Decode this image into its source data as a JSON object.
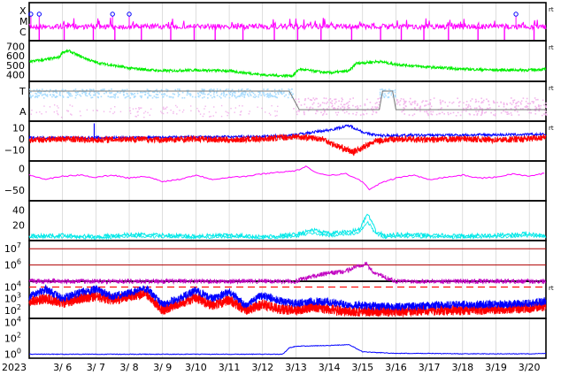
{
  "chart_data": {
    "type": "line",
    "year_label": "2023",
    "x_ticks": [
      "3/ 6",
      "3/ 7",
      "3/ 8",
      "3/ 9",
      "3/10",
      "3/11",
      "3/12",
      "3/13",
      "3/14",
      "3/15",
      "3/16",
      "3/17",
      "3/18",
      "3/19",
      "3/20"
    ],
    "x_range": [
      "3/5",
      "3/20 + 0.5d"
    ],
    "grid": true,
    "colors": {
      "magenta": "#ff00ff",
      "green": "#00ee00",
      "lightblue": "#a8dcff",
      "pink": "#f2b6ec",
      "gray": "#777777",
      "blue": "#0000ff",
      "red": "#ff0000",
      "purple": "#c000c0",
      "cyan": "#00e8e8",
      "darkred": "#b00000"
    },
    "panels": [
      {
        "id": "flare",
        "y_ticks": [
          "X",
          "M",
          "C"
        ],
        "right_mark": "rt",
        "series": [
          {
            "color": "magenta",
            "description_values": "class index ~C-M, spikes to X at 3/5, 3/8, 3/19"
          }
        ],
        "markers": [
          {
            "x": "3/5.05",
            "color": "blue"
          },
          {
            "x": "3/5.3",
            "color": "blue"
          },
          {
            "x": "3/7.5",
            "color": "blue"
          },
          {
            "x": "3/8.0",
            "color": "blue"
          },
          {
            "x": "3/19.6",
            "color": "blue"
          }
        ]
      },
      {
        "id": "speed",
        "y_ticks": [
          "700",
          "600",
          "500",
          "400"
        ],
        "ylim": [
          330,
          760
        ],
        "right_mark": "rt",
        "series": [
          {
            "color": "green",
            "points": [
              [
                5.0,
                540
              ],
              [
                5.5,
                560
              ],
              [
                5.9,
                585
              ],
              [
                6.0,
                640
              ],
              [
                6.2,
                650
              ],
              [
                6.5,
                600
              ],
              [
                7.0,
                530
              ],
              [
                7.5,
                500
              ],
              [
                8.0,
                470
              ],
              [
                9.0,
                440
              ],
              [
                10.0,
                450
              ],
              [
                11.0,
                440
              ],
              [
                11.5,
                420
              ],
              [
                12.0,
                400
              ],
              [
                12.5,
                390
              ],
              [
                12.9,
                390
              ],
              [
                13.1,
                460
              ],
              [
                13.5,
                440
              ],
              [
                14.0,
                420
              ],
              [
                14.6,
                440
              ],
              [
                14.8,
                520
              ],
              [
                15.5,
                540
              ],
              [
                16.0,
                510
              ],
              [
                17.0,
                480
              ],
              [
                18.0,
                460
              ],
              [
                19.0,
                450
              ],
              [
                20.0,
                450
              ],
              [
                20.5,
                460
              ]
            ]
          }
        ]
      },
      {
        "id": "sector",
        "y_ticks": [
          "T",
          "A"
        ],
        "right_mark": "rt",
        "series": [
          {
            "color": "lightblue",
            "label_hint": "T"
          },
          {
            "color": "pink",
            "label_hint": "A"
          },
          {
            "color": "gray",
            "points": [
              [
                5.0,
                1
              ],
              [
                12.8,
                1
              ],
              [
                13.1,
                0
              ],
              [
                15.5,
                0
              ],
              [
                15.6,
                1
              ],
              [
                15.9,
                1
              ],
              [
                16.0,
                0
              ],
              [
                20.5,
                0
              ]
            ]
          }
        ]
      },
      {
        "id": "bz",
        "y_ticks": [
          "10",
          "0",
          "−10"
        ],
        "ylim": [
          -20,
          16
        ],
        "right_mark": "rt",
        "series": [
          {
            "color": "blue",
            "points": [
              [
                5.0,
                1
              ],
              [
                7.8,
                1
              ],
              [
                12.0,
                2
              ],
              [
                12.8,
                3
              ],
              [
                13.5,
                6
              ],
              [
                14.0,
                8
              ],
              [
                14.6,
                12
              ],
              [
                15.1,
                5
              ],
              [
                15.5,
                3
              ],
              [
                20.5,
                4
              ]
            ]
          },
          {
            "color": "red",
            "points": [
              [
                5.0,
                -1
              ],
              [
                6.0,
                0
              ],
              [
                7.0,
                -1
              ],
              [
                8.0,
                0
              ],
              [
                9.0,
                -1
              ],
              [
                10.0,
                0
              ],
              [
                11.0,
                -1
              ],
              [
                12.0,
                0
              ],
              [
                13.0,
                2
              ],
              [
                13.8,
                0
              ],
              [
                14.2,
                -6
              ],
              [
                14.7,
                -12
              ],
              [
                15.0,
                -8
              ],
              [
                15.4,
                -2
              ],
              [
                16.0,
                0
              ],
              [
                17.0,
                -1
              ],
              [
                18.0,
                0
              ],
              [
                19.0,
                -1
              ],
              [
                20.0,
                0
              ],
              [
                20.5,
                2
              ]
            ]
          }
        ]
      },
      {
        "id": "dst",
        "y_ticks": [
          "0",
          "−50"
        ],
        "ylim": [
          -75,
          18
        ],
        "series": [
          {
            "color": "magenta",
            "points": [
              [
                5.0,
                -15
              ],
              [
                5.5,
                -25
              ],
              [
                6.0,
                -18
              ],
              [
                6.5,
                -15
              ],
              [
                7.0,
                -20
              ],
              [
                7.5,
                -15
              ],
              [
                8.0,
                -22
              ],
              [
                8.5,
                -18
              ],
              [
                9.0,
                -30
              ],
              [
                9.5,
                -25
              ],
              [
                10.0,
                -15
              ],
              [
                10.5,
                -25
              ],
              [
                11.0,
                -20
              ],
              [
                11.5,
                -18
              ],
              [
                12.0,
                -12
              ],
              [
                12.5,
                -8
              ],
              [
                13.0,
                -5
              ],
              [
                13.3,
                5
              ],
              [
                13.6,
                -10
              ],
              [
                14.0,
                -15
              ],
              [
                14.5,
                -12
              ],
              [
                15.0,
                -30
              ],
              [
                15.2,
                -50
              ],
              [
                15.5,
                -35
              ],
              [
                16.0,
                -22
              ],
              [
                16.5,
                -15
              ],
              [
                17.0,
                -25
              ],
              [
                17.5,
                -20
              ],
              [
                18.0,
                -15
              ],
              [
                18.5,
                -22
              ],
              [
                19.0,
                -20
              ],
              [
                19.5,
                -12
              ],
              [
                20.0,
                -18
              ],
              [
                20.5,
                -10
              ]
            ]
          }
        ]
      },
      {
        "id": "ae",
        "y_ticks": [
          "40",
          "20"
        ],
        "ylim": [
          0,
          52
        ],
        "series": [
          {
            "color": "cyan",
            "points": [
              [
                5.0,
                6
              ],
              [
                6.0,
                7
              ],
              [
                7.0,
                5
              ],
              [
                8.0,
                8
              ],
              [
                9.0,
                7
              ],
              [
                10.0,
                6
              ],
              [
                11.0,
                7
              ],
              [
                12.0,
                5
              ],
              [
                13.0,
                8
              ],
              [
                13.5,
                14
              ],
              [
                14.0,
                9
              ],
              [
                14.6,
                12
              ],
              [
                14.9,
                14
              ],
              [
                15.15,
                35
              ],
              [
                15.4,
                12
              ],
              [
                15.7,
                6
              ],
              [
                16.0,
                8
              ],
              [
                17.0,
                7
              ],
              [
                18.0,
                6
              ],
              [
                19.0,
                7
              ],
              [
                20.0,
                9
              ],
              [
                20.5,
                7
              ]
            ]
          }
        ]
      },
      {
        "id": "electron",
        "y_ticks": [
          "10^7",
          "10^6"
        ],
        "ylog": [
          5,
          7.5
        ],
        "series": [
          {
            "color": "darkred",
            "name_hint": "threshold 10^7",
            "points": [
              [
                5.0,
                7
              ],
              [
                20.5,
                7
              ]
            ]
          },
          {
            "color": "darkred",
            "name_hint": "threshold 10^6",
            "points": [
              [
                5.0,
                6
              ],
              [
                20.5,
                6
              ]
            ]
          },
          {
            "color": "purple",
            "points": [
              [
                5.0,
                5
              ],
              [
                13.0,
                5
              ],
              [
                13.5,
                5.3
              ],
              [
                14.0,
                5.5
              ],
              [
                14.5,
                5.6
              ],
              [
                14.8,
                5.9
              ],
              [
                15.1,
                6.1
              ],
              [
                15.3,
                5.6
              ],
              [
                15.6,
                5.3
              ],
              [
                16.0,
                5.0
              ],
              [
                20.5,
                5.0
              ]
            ]
          }
        ]
      },
      {
        "id": "proton",
        "y_ticks": [
          "10^4",
          "10^3",
          "10^2"
        ],
        "ylog": [
          1.3,
          4.5
        ],
        "right_mark": "rt",
        "series": [
          {
            "color": "red",
            "dashed": true,
            "points": [
              [
                5.0,
                4
              ],
              [
                20.5,
                4
              ]
            ]
          },
          {
            "color": "blue",
            "points": [
              [
                5.0,
                3.2
              ],
              [
                5.5,
                3.8
              ],
              [
                6.0,
                3.0
              ],
              [
                6.5,
                3.5
              ],
              [
                7.0,
                3.8
              ],
              [
                7.5,
                3.2
              ],
              [
                8.0,
                3.5
              ],
              [
                8.5,
                3.9
              ],
              [
                9.0,
                2.5
              ],
              [
                9.5,
                3.0
              ],
              [
                10.0,
                3.7
              ],
              [
                10.5,
                3.0
              ],
              [
                11.0,
                3.6
              ],
              [
                11.5,
                2.4
              ],
              [
                12.0,
                3.3
              ],
              [
                12.5,
                2.8
              ],
              [
                13.0,
                2.6
              ],
              [
                13.5,
                2.8
              ],
              [
                14.0,
                2.7
              ],
              [
                14.5,
                2.5
              ],
              [
                15.0,
                2.4
              ],
              [
                16.0,
                2.3
              ],
              [
                17.0,
                2.4
              ],
              [
                18.0,
                2.5
              ],
              [
                19.0,
                2.5
              ],
              [
                20.0,
                2.6
              ],
              [
                20.5,
                2.8
              ]
            ]
          },
          {
            "color": "red",
            "points": [
              [
                5.0,
                2.8
              ],
              [
                5.5,
                3.0
              ],
              [
                6.0,
                2.6
              ],
              [
                6.5,
                3.0
              ],
              [
                7.0,
                3.2
              ],
              [
                7.5,
                2.9
              ],
              [
                8.0,
                3.2
              ],
              [
                8.5,
                3.5
              ],
              [
                9.0,
                2.0
              ],
              [
                9.5,
                2.6
              ],
              [
                10.0,
                3.1
              ],
              [
                10.5,
                2.4
              ],
              [
                11.0,
                2.9
              ],
              [
                11.5,
                2.0
              ],
              [
                12.0,
                2.5
              ],
              [
                12.5,
                2.1
              ],
              [
                13.0,
                2.0
              ],
              [
                13.5,
                2.3
              ],
              [
                14.0,
                2.1
              ],
              [
                14.5,
                1.9
              ],
              [
                15.0,
                1.9
              ],
              [
                16.0,
                1.9
              ],
              [
                17.0,
                2.0
              ],
              [
                18.0,
                2.0
              ],
              [
                19.0,
                2.1
              ],
              [
                20.0,
                2.2
              ],
              [
                20.5,
                2.4
              ]
            ]
          }
        ]
      },
      {
        "id": "sep",
        "y_ticks": [
          "10^4",
          "10^2",
          "10^0"
        ],
        "ylog": [
          -0.5,
          4.5
        ],
        "series": [
          {
            "color": "blue",
            "points": [
              [
                5.0,
                0
              ],
              [
                12.6,
                0
              ],
              [
                12.8,
                0.8
              ],
              [
                13.0,
                1.0
              ],
              [
                14.0,
                1.1
              ],
              [
                14.6,
                1.2
              ],
              [
                15.0,
                0.3
              ],
              [
                16.0,
                0.1
              ],
              [
                17.0,
                0.1
              ],
              [
                18.0,
                0.05
              ],
              [
                19.0,
                0.05
              ],
              [
                20.0,
                0.05
              ],
              [
                20.5,
                0.1
              ]
            ]
          }
        ]
      }
    ]
  }
}
